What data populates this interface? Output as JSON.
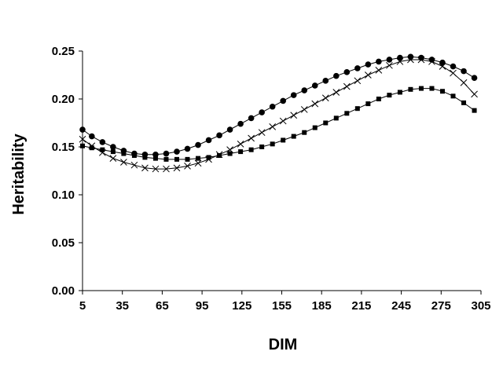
{
  "chart_data": {
    "type": "scatter",
    "title": "",
    "xlabel": "DIM",
    "ylabel": "Heritability",
    "xlim": [
      5,
      305
    ],
    "ylim": [
      0,
      0.25
    ],
    "x_ticks": [
      "5",
      "35",
      "65",
      "95",
      "125",
      "155",
      "185",
      "215",
      "245",
      "275",
      "305"
    ],
    "y_ticks": [
      "0.00",
      "0.05",
      "0.10",
      "0.15",
      "0.20",
      "0.25"
    ],
    "grid": false,
    "legend": "none",
    "x": [
      5,
      12,
      20,
      28,
      36,
      44,
      52,
      60,
      68,
      76,
      84,
      92,
      100,
      108,
      116,
      124,
      132,
      140,
      148,
      156,
      164,
      172,
      180,
      188,
      196,
      204,
      212,
      220,
      228,
      236,
      244,
      252,
      260,
      268,
      276,
      284,
      292,
      300
    ],
    "series": [
      {
        "marker": "circle",
        "color": "#000000",
        "values": [
          0.168,
          0.161,
          0.155,
          0.15,
          0.146,
          0.143,
          0.142,
          0.142,
          0.143,
          0.145,
          0.148,
          0.152,
          0.157,
          0.162,
          0.168,
          0.174,
          0.18,
          0.186,
          0.192,
          0.198,
          0.204,
          0.209,
          0.214,
          0.219,
          0.224,
          0.228,
          0.232,
          0.236,
          0.239,
          0.241,
          0.243,
          0.244,
          0.243,
          0.241,
          0.238,
          0.234,
          0.229,
          0.222
        ]
      },
      {
        "marker": "x",
        "color": "#000000",
        "values": [
          0.158,
          0.151,
          0.144,
          0.138,
          0.134,
          0.131,
          0.128,
          0.127,
          0.127,
          0.128,
          0.13,
          0.133,
          0.137,
          0.142,
          0.147,
          0.153,
          0.159,
          0.165,
          0.171,
          0.177,
          0.183,
          0.189,
          0.195,
          0.201,
          0.207,
          0.213,
          0.219,
          0.225,
          0.23,
          0.235,
          0.239,
          0.241,
          0.241,
          0.239,
          0.234,
          0.227,
          0.217,
          0.205
        ]
      },
      {
        "marker": "square",
        "color": "#000000",
        "values": [
          0.151,
          0.149,
          0.147,
          0.145,
          0.143,
          0.141,
          0.139,
          0.138,
          0.137,
          0.137,
          0.137,
          0.138,
          0.139,
          0.141,
          0.143,
          0.145,
          0.147,
          0.15,
          0.153,
          0.157,
          0.161,
          0.165,
          0.17,
          0.175,
          0.18,
          0.185,
          0.19,
          0.195,
          0.2,
          0.204,
          0.207,
          0.21,
          0.211,
          0.211,
          0.208,
          0.203,
          0.196,
          0.188
        ]
      }
    ]
  }
}
